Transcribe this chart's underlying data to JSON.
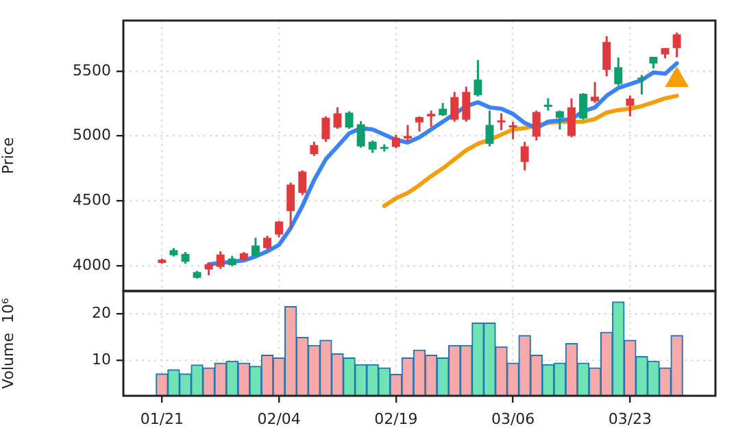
{
  "chart_data": [
    {
      "type": "candlestick",
      "ylabel": "Price",
      "categories": [
        null,
        null,
        null,
        null,
        null,
        null,
        null,
        null,
        null,
        null,
        null,
        null,
        null,
        null,
        null,
        null,
        null,
        null,
        null,
        null,
        null,
        null,
        null,
        null,
        null,
        null,
        null,
        null,
        null,
        null,
        null,
        null,
        null,
        null,
        null,
        null,
        null,
        null,
        null,
        null,
        null,
        null,
        null,
        null,
        null
      ],
      "ohlc": [
        [
          4020,
          4055,
          4015,
          4045
        ],
        [
          4120,
          4135,
          4070,
          4080
        ],
        [
          4090,
          4105,
          4015,
          4030
        ],
        [
          3950,
          3960,
          3900,
          3905
        ],
        [
          3970,
          4020,
          3925,
          4010
        ],
        [
          3990,
          4110,
          3975,
          4085
        ],
        [
          4055,
          4075,
          3995,
          4005
        ],
        [
          4045,
          4105,
          4040,
          4095
        ],
        [
          4155,
          4215,
          4065,
          4075
        ],
        [
          4135,
          4230,
          4125,
          4215
        ],
        [
          4240,
          4345,
          4220,
          4340
        ],
        [
          4420,
          4640,
          4290,
          4625
        ],
        [
          4560,
          4735,
          4545,
          4725
        ],
        [
          4860,
          4955,
          4845,
          4930
        ],
        [
          4975,
          5150,
          4955,
          5140
        ],
        [
          5065,
          5220,
          5055,
          5175
        ],
        [
          5180,
          5190,
          5055,
          5065
        ],
        [
          5090,
          5115,
          4910,
          4920
        ],
        [
          4955,
          4965,
          4870,
          4895
        ],
        [
          4915,
          4935,
          4880,
          4908
        ],
        [
          4915,
          5010,
          4905,
          4985
        ],
        [
          4980,
          5085,
          4955,
          5000
        ],
        [
          5105,
          5150,
          5035,
          5145
        ],
        [
          5150,
          5195,
          5070,
          5170
        ],
        [
          5210,
          5255,
          5155,
          5160
        ],
        [
          5125,
          5340,
          5110,
          5300
        ],
        [
          5125,
          5380,
          5110,
          5340
        ],
        [
          5435,
          5585,
          5305,
          5315
        ],
        [
          5085,
          5195,
          4920,
          4940
        ],
        [
          5115,
          5175,
          5045,
          5120
        ],
        [
          5078,
          5110,
          4975,
          5082
        ],
        [
          4800,
          4955,
          4735,
          4920
        ],
        [
          4995,
          5195,
          4965,
          5185
        ],
        [
          5240,
          5290,
          5195,
          5232
        ],
        [
          5190,
          5195,
          5050,
          5140
        ],
        [
          5000,
          5290,
          4990,
          5220
        ],
        [
          5325,
          5330,
          5125,
          5135
        ],
        [
          5268,
          5415,
          5255,
          5302
        ],
        [
          5510,
          5770,
          5460,
          5725
        ],
        [
          5530,
          5605,
          5390,
          5400
        ],
        [
          5232,
          5310,
          5150,
          5288
        ],
        [
          5450,
          5470,
          5320,
          5440
        ],
        [
          5610,
          5610,
          5520,
          5558
        ],
        [
          5628,
          5677,
          5600,
          5677
        ],
        [
          5677,
          5797,
          5606,
          5783
        ]
      ],
      "colors": [
        "#e0393e",
        "#0e9f6e",
        "#0e9f6e",
        "#0e9f6e",
        "#e0393e",
        "#e0393e",
        "#0e9f6e",
        "#e0393e",
        "#0e9f6e",
        "#e0393e",
        "#e0393e",
        "#e0393e",
        "#e0393e",
        "#e0393e",
        "#e0393e",
        "#e0393e",
        "#0e9f6e",
        "#0e9f6e",
        "#0e9f6e",
        "#0e9f6e",
        "#e0393e",
        "#e0393e",
        "#e0393e",
        "#e0393e",
        "#0e9f6e",
        "#e0393e",
        "#e0393e",
        "#0e9f6e",
        "#0e9f6e",
        "#e0393e",
        "#e0393e",
        "#e0393e",
        "#e0393e",
        "#0e9f6e",
        "#0e9f6e",
        "#e0393e",
        "#0e9f6e",
        "#e0393e",
        "#e0393e",
        "#0e9f6e",
        "#e0393e",
        "#0e9f6e",
        "#0e9f6e",
        "#e0393e",
        "#e0393e"
      ],
      "series": [
        {
          "type": "line",
          "color": "#3b82f6",
          "values": [
            null,
            null,
            null,
            null,
            4010,
            4020,
            4030,
            4040,
            4070,
            4110,
            4160,
            4290,
            4460,
            4660,
            4820,
            4920,
            5020,
            5060,
            5050,
            5010,
            4970,
            4950,
            4990,
            5050,
            5110,
            5170,
            5230,
            5260,
            5220,
            5210,
            5170,
            5100,
            5060,
            5110,
            5120,
            5130,
            5190,
            5220,
            5310,
            5370,
            5400,
            5430,
            5490,
            5480,
            5560
          ]
        },
        {
          "type": "line",
          "color": "#f59e0b",
          "values": [
            null,
            null,
            null,
            null,
            null,
            null,
            null,
            null,
            null,
            null,
            null,
            null,
            null,
            null,
            null,
            null,
            null,
            null,
            null,
            4460,
            4520,
            4560,
            4620,
            4690,
            4750,
            4820,
            4890,
            4940,
            4970,
            5010,
            5050,
            5060,
            5080,
            5100,
            5110,
            5110,
            5110,
            5130,
            5180,
            5200,
            5210,
            5230,
            5260,
            5290,
            5310
          ]
        },
        {
          "type": "scatter",
          "color": "#f59e0b",
          "marker": "triangle",
          "values": [
            null,
            null,
            null,
            null,
            null,
            null,
            null,
            null,
            null,
            null,
            null,
            null,
            null,
            null,
            null,
            null,
            null,
            null,
            null,
            null,
            null,
            null,
            null,
            null,
            null,
            null,
            null,
            null,
            null,
            null,
            null,
            null,
            null,
            null,
            null,
            null,
            null,
            null,
            null,
            null,
            null,
            null,
            null,
            null,
            5430
          ]
        }
      ],
      "ylim": [
        3805,
        5890
      ],
      "yticks": [
        4000,
        4500,
        5000,
        5500
      ],
      "grid": true,
      "tick_labels": "y"
    },
    {
      "type": "bar",
      "ylabel": "Volume  10⁶",
      "categories": [
        "01/21",
        null,
        null,
        null,
        null,
        null,
        null,
        null,
        null,
        null,
        "02/04",
        null,
        null,
        null,
        null,
        null,
        null,
        null,
        null,
        null,
        "02/19",
        null,
        null,
        null,
        null,
        null,
        null,
        null,
        null,
        null,
        "03/06",
        null,
        null,
        null,
        null,
        null,
        null,
        null,
        null,
        null,
        "03/23",
        null,
        null,
        null,
        null
      ],
      "values": [
        7.1,
        8.0,
        7.1,
        9.0,
        8.4,
        9.4,
        9.8,
        9.4,
        8.7,
        11.1,
        10.5,
        21.5,
        14.9,
        13.2,
        14.3,
        11.4,
        10.5,
        9.1,
        9.1,
        8.4,
        7.0,
        10.5,
        12.2,
        11.1,
        10.5,
        13.2,
        13.2,
        18.0,
        18.0,
        12.9,
        9.4,
        15.3,
        11.1,
        9.1,
        9.4,
        13.6,
        9.4,
        8.4,
        16.0,
        22.5,
        14.3,
        10.8,
        9.8,
        8.4,
        15.3
      ],
      "colors": [
        "#f7a8a8",
        "#6fe3b4",
        "#6fe3b4",
        "#6fe3b4",
        "#f7a8a8",
        "#f7a8a8",
        "#6fe3b4",
        "#f7a8a8",
        "#6fe3b4",
        "#f7a8a8",
        "#f7a8a8",
        "#f7a8a8",
        "#f7a8a8",
        "#f7a8a8",
        "#f7a8a8",
        "#f7a8a8",
        "#6fe3b4",
        "#6fe3b4",
        "#6fe3b4",
        "#6fe3b4",
        "#f7a8a8",
        "#f7a8a8",
        "#f7a8a8",
        "#f7a8a8",
        "#6fe3b4",
        "#f7a8a8",
        "#f7a8a8",
        "#6fe3b4",
        "#6fe3b4",
        "#f7a8a8",
        "#f7a8a8",
        "#f7a8a8",
        "#f7a8a8",
        "#6fe3b4",
        "#6fe3b4",
        "#f7a8a8",
        "#6fe3b4",
        "#f7a8a8",
        "#f7a8a8",
        "#6fe3b4",
        "#f7a8a8",
        "#6fe3b4",
        "#6fe3b4",
        "#f7a8a8",
        "#f7a8a8"
      ],
      "ylim": [
        2.4,
        24.8
      ],
      "yticks": [
        10,
        20
      ],
      "grid": true
    }
  ]
}
